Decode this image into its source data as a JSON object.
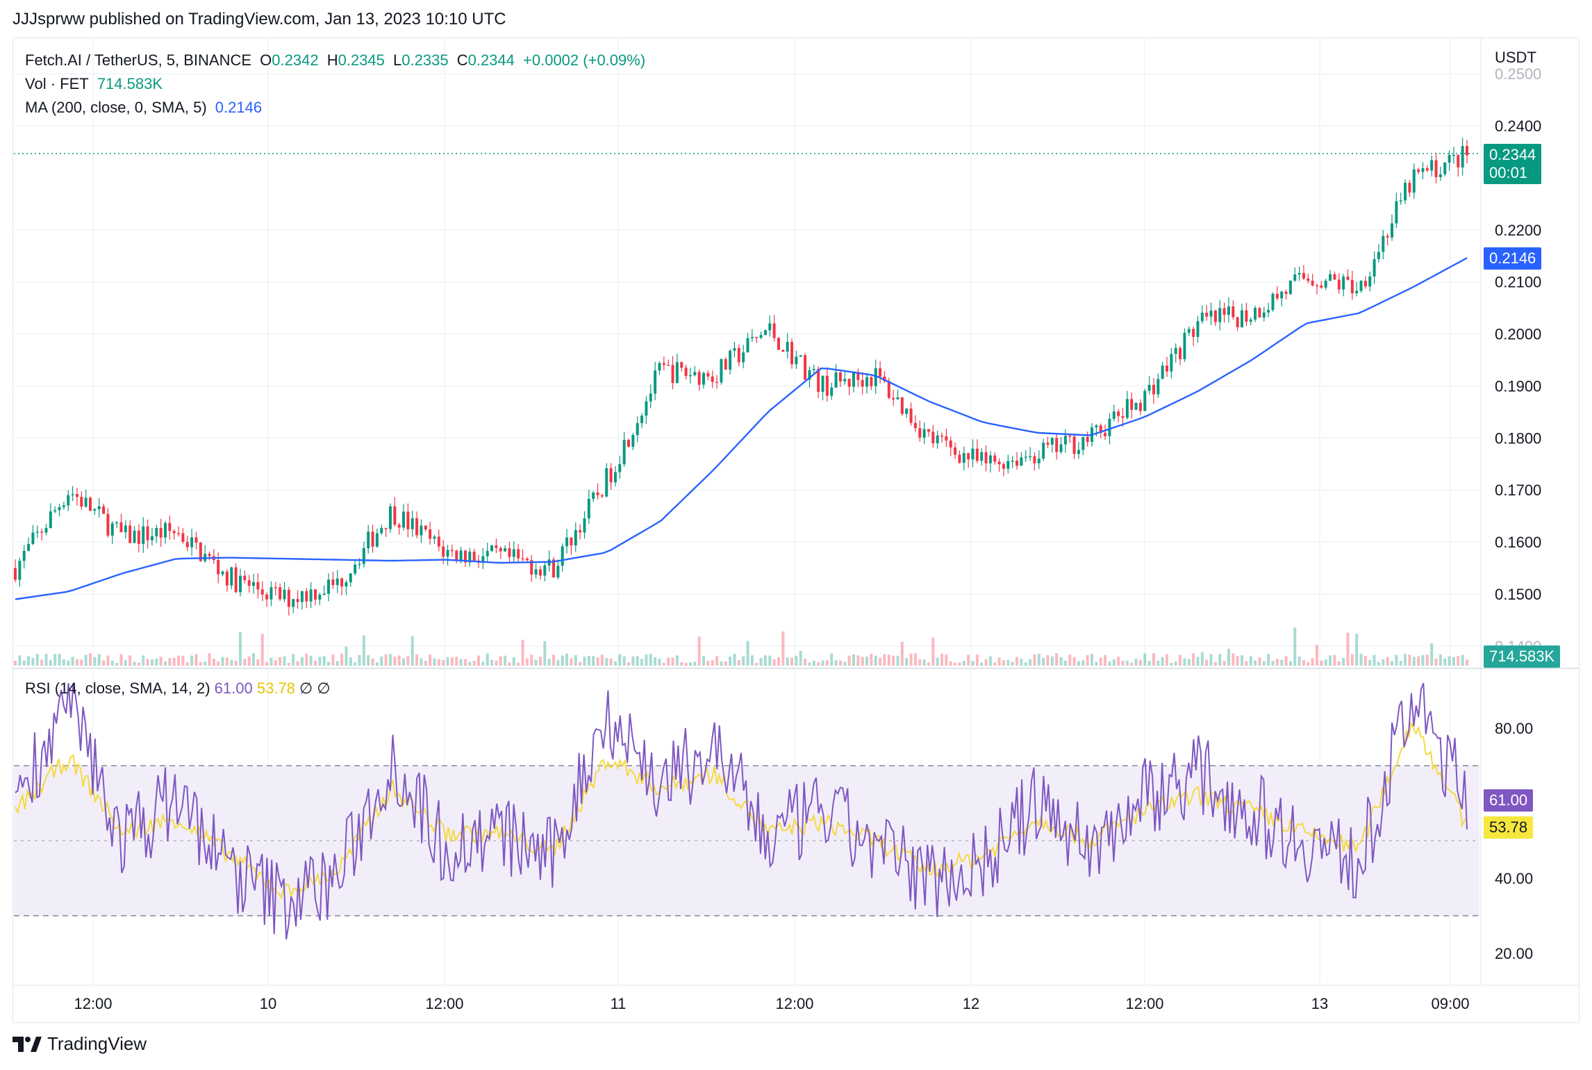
{
  "header": {
    "published": "JJJsprww published on TradingView.com, Jan 13, 2023 10:10 UTC"
  },
  "legend": {
    "symbol": "Fetch.AI / TetherUS, 5, BINANCE",
    "o_label": "O",
    "o": "0.2342",
    "h_label": "H",
    "h": "0.2345",
    "l_label": "L",
    "l": "0.2335",
    "c_label": "C",
    "c": "0.2344",
    "change": "+0.0002 (+0.09%)",
    "vol_label": "Vol · FET",
    "vol": "714.583K",
    "ma_label": "MA (200, close, 0, SMA, 5)",
    "ma": "0.2146"
  },
  "rsi_legend": {
    "label": "RSI (14, close, SMA, 14, 2)",
    "rsi": "61.00",
    "rsi_ma": "53.78",
    "extra1": "∅",
    "extra2": "∅"
  },
  "price_axis": {
    "currency": "USDT",
    "ticks": [
      "0.2500",
      "0.2400",
      "0.2200",
      "0.2100",
      "0.2000",
      "0.1900",
      "0.1800",
      "0.1700",
      "0.1600",
      "0.1500",
      "0.1400"
    ]
  },
  "rsi_axis": {
    "ticks": [
      "80.00",
      "40.00",
      "20.00"
    ]
  },
  "time_axis": {
    "ticks": [
      "12:00",
      "10",
      "12:00",
      "11",
      "12:00",
      "12",
      "12:00",
      "13",
      "09:00"
    ]
  },
  "tags": {
    "last_price": "0.2344",
    "countdown": "00:01",
    "ma": "0.2146",
    "volume": "714.583K",
    "rsi": "61.00",
    "rsi_ma": "53.78"
  },
  "colors": {
    "up": "#089981",
    "down": "#f23645",
    "ma": "#2962ff",
    "rsi": "#7e57c2",
    "rsi_ma": "#f5d940",
    "rsi_band": "#ede7f6"
  },
  "footer": {
    "brand": "TradingView",
    "logo_icon": "tradingview-logo-icon"
  },
  "chart_data": [
    {
      "type": "line",
      "title": "Fetch.AI / TetherUS, 5, BINANCE",
      "xlabel": "",
      "ylabel": "USDT",
      "x": [
        "Jan 9 06:00",
        "Jan 9 08:00",
        "Jan 9 12:00",
        "Jan 9 16:00",
        "Jan 9 20:00",
        "Jan 10 00:00",
        "Jan 10 04:00",
        "Jan 10 08:00",
        "Jan 10 12:00",
        "Jan 10 16:00",
        "Jan 10 20:00",
        "Jan 11 00:00",
        "Jan 11 04:00",
        "Jan 11 08:00",
        "Jan 11 12:00",
        "Jan 11 16:00",
        "Jan 11 20:00",
        "Jan 12 00:00",
        "Jan 12 04:00",
        "Jan 12 08:00",
        "Jan 12 12:00",
        "Jan 12 16:00",
        "Jan 12 20:00",
        "Jan 13 00:00",
        "Jan 13 04:00",
        "Jan 13 06:00",
        "Jan 13 08:00",
        "Jan 13 10:00"
      ],
      "series": [
        {
          "values": [
            0.155,
            0.17,
            0.161,
            0.162,
            0.153,
            0.149,
            0.152,
            0.166,
            0.158,
            0.157,
            0.155,
            0.172,
            0.193,
            0.192,
            0.201,
            0.19,
            0.192,
            0.18,
            0.175,
            0.177,
            0.18,
            0.188,
            0.202,
            0.204,
            0.211,
            0.209,
            0.23,
            0.2344
          ]
        },
        {
          "name": "MA (200, close, 0, SMA, 5)",
          "values": [
            0.149,
            0.1505,
            0.154,
            0.1568,
            0.157,
            0.1568,
            0.1566,
            0.1564,
            0.1566,
            0.156,
            0.1562,
            0.158,
            0.164,
            0.174,
            0.185,
            0.1935,
            0.192,
            0.187,
            0.183,
            0.181,
            0.1805,
            0.184,
            0.189,
            0.195,
            0.202,
            0.204,
            0.209,
            0.2146
          ]
        }
      ],
      "ylim": [
        0.139,
        0.252
      ],
      "grid": true
    },
    {
      "type": "line",
      "title": "RSI (14, close, SMA, 14, 2)",
      "x": [
        "Jan 9 06:00",
        "Jan 9 08:00",
        "Jan 9 12:00",
        "Jan 9 16:00",
        "Jan 9 20:00",
        "Jan 10 00:00",
        "Jan 10 04:00",
        "Jan 10 08:00",
        "Jan 10 12:00",
        "Jan 10 16:00",
        "Jan 10 20:00",
        "Jan 11 00:00",
        "Jan 11 04:00",
        "Jan 11 08:00",
        "Jan 11 12:00",
        "Jan 11 16:00",
        "Jan 11 20:00",
        "Jan 12 00:00",
        "Jan 12 04:00",
        "Jan 12 08:00",
        "Jan 12 12:00",
        "Jan 12 16:00",
        "Jan 12 20:00",
        "Jan 13 00:00",
        "Jan 13 04:00",
        "Jan 13 06:00",
        "Jan 13 08:00",
        "Jan 13 10:00"
      ],
      "series": [
        {
          "values": [
            62,
            86,
            50,
            62,
            42,
            34,
            40,
            72,
            48,
            52,
            45,
            85,
            64,
            75,
            50,
            58,
            48,
            40,
            44,
            60,
            48,
            62,
            68,
            58,
            50,
            44,
            88,
            61
          ]
        },
        {
          "values": [
            58,
            72,
            52,
            56,
            46,
            36,
            42,
            64,
            52,
            52,
            47,
            72,
            64,
            68,
            52,
            55,
            50,
            42,
            46,
            56,
            50,
            58,
            62,
            58,
            52,
            48,
            82,
            53.78
          ]
        }
      ],
      "bands": [
        30,
        50,
        70
      ],
      "ylim": [
        10,
        95
      ]
    }
  ]
}
